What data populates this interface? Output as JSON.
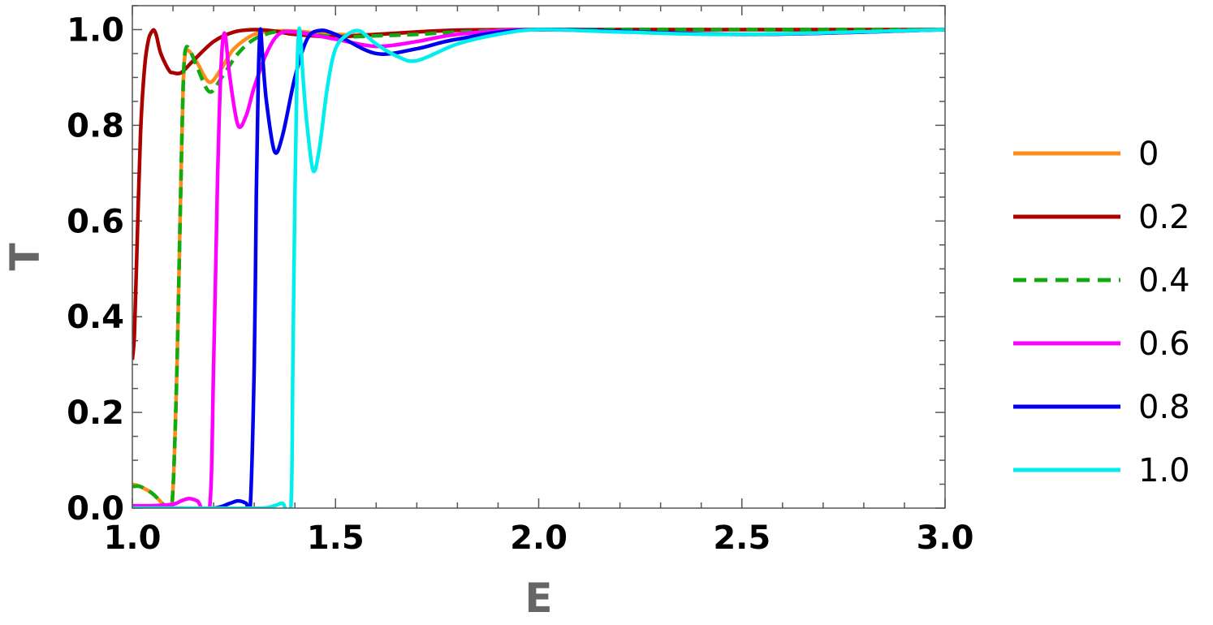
{
  "chart_data": {
    "type": "line",
    "xlabel": "E",
    "ylabel": "T",
    "xlim": [
      1.0,
      3.0
    ],
    "ylim": [
      0.0,
      1.05
    ],
    "xticks": [
      "1.0",
      "1.5",
      "2.0",
      "2.5",
      "3.0"
    ],
    "yticks": [
      "0.0",
      "0.2",
      "0.4",
      "0.6",
      "0.8",
      "1.0"
    ],
    "legend_position": "right",
    "grid": false,
    "series": [
      {
        "name": "0",
        "color": "#ff8c1a",
        "dash": false,
        "x": [
          1.0,
          1.02,
          1.05,
          1.08,
          1.095,
          1.1,
          1.105,
          1.11,
          1.115,
          1.12,
          1.125,
          1.13,
          1.14,
          1.16,
          1.19,
          1.22,
          1.25,
          1.3,
          1.35,
          1.4,
          1.5,
          1.6,
          1.7,
          1.8,
          2.0,
          2.5,
          3.0
        ],
        "y": [
          0.05,
          0.045,
          0.03,
          0.005,
          0.0,
          0.04,
          0.15,
          0.3,
          0.5,
          0.7,
          0.88,
          0.95,
          0.955,
          0.93,
          0.89,
          0.92,
          0.96,
          0.99,
          0.997,
          0.997,
          0.99,
          0.99,
          0.995,
          0.998,
          1.0,
          1.0,
          1.0
        ]
      },
      {
        "name": "0.2",
        "color": "#aa0000",
        "dash": false,
        "x": [
          1.0,
          1.005,
          1.01,
          1.02,
          1.03,
          1.04,
          1.05,
          1.055,
          1.06,
          1.07,
          1.09,
          1.1,
          1.12,
          1.15,
          1.2,
          1.25,
          1.3,
          1.35,
          1.4,
          1.5,
          1.6,
          1.7,
          1.8,
          2.0,
          2.5,
          3.0
        ],
        "y": [
          0.31,
          0.36,
          0.5,
          0.78,
          0.92,
          0.98,
          0.998,
          0.997,
          0.985,
          0.95,
          0.915,
          0.91,
          0.91,
          0.935,
          0.975,
          0.995,
          1.0,
          0.997,
          0.99,
          0.985,
          0.99,
          0.995,
          0.999,
          1.0,
          1.0,
          1.0
        ]
      },
      {
        "name": "0.4",
        "color": "#11aa11",
        "dash": true,
        "x": [
          1.0,
          1.02,
          1.05,
          1.08,
          1.095,
          1.1,
          1.105,
          1.11,
          1.115,
          1.12,
          1.125,
          1.13,
          1.14,
          1.16,
          1.19,
          1.22,
          1.26,
          1.3,
          1.35,
          1.4,
          1.5,
          1.6,
          1.7,
          1.8,
          2.0,
          2.5,
          3.0
        ],
        "y": [
          0.045,
          0.045,
          0.03,
          0.005,
          0.0,
          0.04,
          0.15,
          0.3,
          0.5,
          0.7,
          0.88,
          0.955,
          0.96,
          0.92,
          0.87,
          0.9,
          0.95,
          0.98,
          0.995,
          0.995,
          0.985,
          0.987,
          0.99,
          0.995,
          1.0,
          1.0,
          1.0
        ]
      },
      {
        "name": "0.6",
        "color": "#ff00ff",
        "dash": false,
        "x": [
          1.0,
          1.05,
          1.1,
          1.12,
          1.14,
          1.16,
          1.19,
          1.2,
          1.21,
          1.215,
          1.22,
          1.225,
          1.23,
          1.24,
          1.26,
          1.28,
          1.3,
          1.33,
          1.36,
          1.4,
          1.5,
          1.6,
          1.7,
          1.8,
          2.0,
          2.5,
          3.0
        ],
        "y": [
          0.005,
          0.005,
          0.008,
          0.015,
          0.02,
          0.015,
          0.0,
          0.3,
          0.7,
          0.85,
          0.95,
          0.99,
          0.98,
          0.9,
          0.8,
          0.82,
          0.88,
          0.95,
          0.99,
          0.995,
          0.98,
          0.965,
          0.975,
          0.99,
          1.0,
          0.99,
          1.0
        ]
      },
      {
        "name": "0.8",
        "color": "#0000ee",
        "dash": false,
        "x": [
          1.0,
          1.1,
          1.2,
          1.24,
          1.26,
          1.28,
          1.29,
          1.3,
          1.305,
          1.31,
          1.315,
          1.32,
          1.33,
          1.35,
          1.37,
          1.4,
          1.43,
          1.46,
          1.5,
          1.6,
          1.7,
          1.8,
          2.0,
          2.5,
          3.0
        ],
        "y": [
          0.0,
          0.0,
          0.0,
          0.01,
          0.015,
          0.01,
          0.0,
          0.3,
          0.65,
          0.9,
          1.0,
          0.95,
          0.85,
          0.745,
          0.78,
          0.9,
          0.98,
          0.998,
          0.99,
          0.95,
          0.96,
          0.98,
          1.0,
          0.99,
          1.0
        ]
      },
      {
        "name": "1.0",
        "color": "#00eeee",
        "dash": false,
        "x": [
          1.0,
          1.2,
          1.32,
          1.35,
          1.37,
          1.39,
          1.395,
          1.4,
          1.405,
          1.41,
          1.415,
          1.42,
          1.43,
          1.445,
          1.46,
          1.48,
          1.5,
          1.53,
          1.56,
          1.6,
          1.65,
          1.7,
          1.8,
          1.9,
          2.0,
          2.2,
          2.5,
          3.0
        ],
        "y": [
          0.0,
          0.0,
          0.0,
          0.005,
          0.01,
          0.0,
          0.3,
          0.65,
          0.9,
          1.0,
          0.97,
          0.9,
          0.8,
          0.705,
          0.75,
          0.88,
          0.96,
          0.99,
          0.997,
          0.97,
          0.945,
          0.935,
          0.97,
          0.99,
          1.0,
          0.995,
          0.99,
          1.0
        ]
      }
    ]
  }
}
